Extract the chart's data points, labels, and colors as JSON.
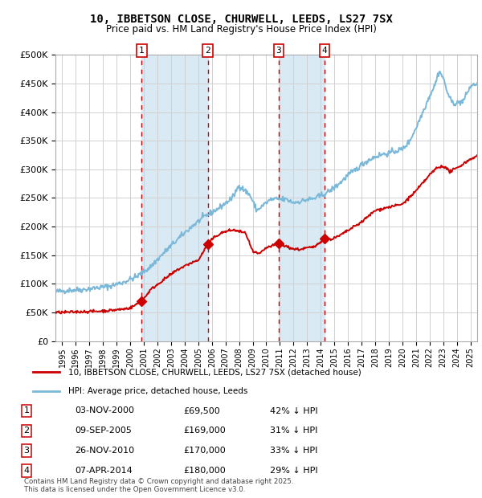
{
  "title": "10, IBBETSON CLOSE, CHURWELL, LEEDS, LS27 7SX",
  "subtitle": "Price paid vs. HM Land Registry's House Price Index (HPI)",
  "legend_line1": "10, IBBETSON CLOSE, CHURWELL, LEEDS, LS27 7SX (detached house)",
  "legend_line2": "HPI: Average price, detached house, Leeds",
  "footer_line1": "Contains HM Land Registry data © Crown copyright and database right 2025.",
  "footer_line2": "This data is licensed under the Open Government Licence v3.0.",
  "transactions": [
    {
      "num": 1,
      "date": "03-NOV-2000",
      "price": "£69,500",
      "pct": "42% ↓ HPI",
      "x_year": 2000.84
    },
    {
      "num": 2,
      "date": "09-SEP-2005",
      "price": "£169,000",
      "pct": "31% ↓ HPI",
      "x_year": 2005.69
    },
    {
      "num": 3,
      "date": "26-NOV-2010",
      "price": "£170,000",
      "pct": "33% ↓ HPI",
      "x_year": 2010.9
    },
    {
      "num": 4,
      "date": "07-APR-2014",
      "price": "£180,000",
      "pct": "29% ↓ HPI",
      "x_year": 2014.27
    }
  ],
  "hpi_color": "#7ab8d9",
  "price_color": "#cc0000",
  "marker_color": "#cc0000",
  "dashed_line_color": "#cc0000",
  "shade_color": "#daeaf5",
  "background_color": "#ffffff",
  "grid_color": "#d0d0d0",
  "ylim": [
    0,
    500000
  ],
  "xlim_start": 1994.5,
  "xlim_end": 2025.5,
  "hpi_anchors": [
    [
      1994.5,
      86000
    ],
    [
      1995.5,
      89000
    ],
    [
      1996.5,
      90000
    ],
    [
      1997.5,
      93000
    ],
    [
      1998.5,
      96000
    ],
    [
      1999.5,
      103000
    ],
    [
      2000.5,
      113000
    ],
    [
      2001.5,
      130000
    ],
    [
      2002.5,
      155000
    ],
    [
      2003.5,
      178000
    ],
    [
      2004.5,
      200000
    ],
    [
      2005.5,
      218000
    ],
    [
      2006.5,
      232000
    ],
    [
      2007.5,
      250000
    ],
    [
      2008.0,
      272000
    ],
    [
      2008.8,
      255000
    ],
    [
      2009.3,
      228000
    ],
    [
      2009.8,
      238000
    ],
    [
      2010.3,
      247000
    ],
    [
      2010.8,
      248000
    ],
    [
      2011.5,
      247000
    ],
    [
      2012.0,
      242000
    ],
    [
      2012.5,
      244000
    ],
    [
      2013.0,
      247000
    ],
    [
      2013.5,
      249000
    ],
    [
      2014.0,
      254000
    ],
    [
      2014.5,
      260000
    ],
    [
      2015.0,
      268000
    ],
    [
      2015.5,
      278000
    ],
    [
      2016.0,
      290000
    ],
    [
      2016.5,
      298000
    ],
    [
      2017.0,
      308000
    ],
    [
      2017.5,
      316000
    ],
    [
      2018.0,
      322000
    ],
    [
      2018.5,
      326000
    ],
    [
      2019.0,
      328000
    ],
    [
      2019.5,
      332000
    ],
    [
      2020.0,
      335000
    ],
    [
      2020.5,
      348000
    ],
    [
      2021.0,
      372000
    ],
    [
      2021.5,
      400000
    ],
    [
      2022.0,
      428000
    ],
    [
      2022.4,
      448000
    ],
    [
      2022.7,
      472000
    ],
    [
      2023.0,
      460000
    ],
    [
      2023.3,
      435000
    ],
    [
      2023.6,
      418000
    ],
    [
      2024.0,
      415000
    ],
    [
      2024.5,
      420000
    ],
    [
      2025.0,
      445000
    ],
    [
      2025.5,
      450000
    ]
  ],
  "price_anchors": [
    [
      1994.5,
      50000
    ],
    [
      1995.5,
      50500
    ],
    [
      1996.5,
      51500
    ],
    [
      1997.5,
      52000
    ],
    [
      1998.5,
      53500
    ],
    [
      1999.5,
      56000
    ],
    [
      2000.0,
      58000
    ],
    [
      2000.84,
      69500
    ],
    [
      2001.5,
      90000
    ],
    [
      2002.5,
      108000
    ],
    [
      2003.5,
      125000
    ],
    [
      2004.5,
      137000
    ],
    [
      2005.0,
      141000
    ],
    [
      2005.69,
      169000
    ],
    [
      2006.2,
      182000
    ],
    [
      2006.8,
      190000
    ],
    [
      2007.5,
      194000
    ],
    [
      2008.0,
      192000
    ],
    [
      2008.5,
      188000
    ],
    [
      2009.0,
      156000
    ],
    [
      2009.5,
      152000
    ],
    [
      2010.0,
      163000
    ],
    [
      2010.9,
      170000
    ],
    [
      2011.5,
      165000
    ],
    [
      2012.0,
      161000
    ],
    [
      2012.5,
      160000
    ],
    [
      2013.0,
      163000
    ],
    [
      2013.5,
      164000
    ],
    [
      2014.27,
      180000
    ],
    [
      2014.8,
      178000
    ],
    [
      2015.3,
      183000
    ],
    [
      2016.0,
      193000
    ],
    [
      2017.0,
      208000
    ],
    [
      2018.0,
      228000
    ],
    [
      2019.0,
      234000
    ],
    [
      2020.0,
      239000
    ],
    [
      2021.0,
      262000
    ],
    [
      2022.0,
      290000
    ],
    [
      2022.5,
      302000
    ],
    [
      2023.0,
      306000
    ],
    [
      2023.5,
      296000
    ],
    [
      2024.0,
      302000
    ],
    [
      2024.5,
      310000
    ],
    [
      2025.0,
      318000
    ],
    [
      2025.5,
      323000
    ]
  ]
}
